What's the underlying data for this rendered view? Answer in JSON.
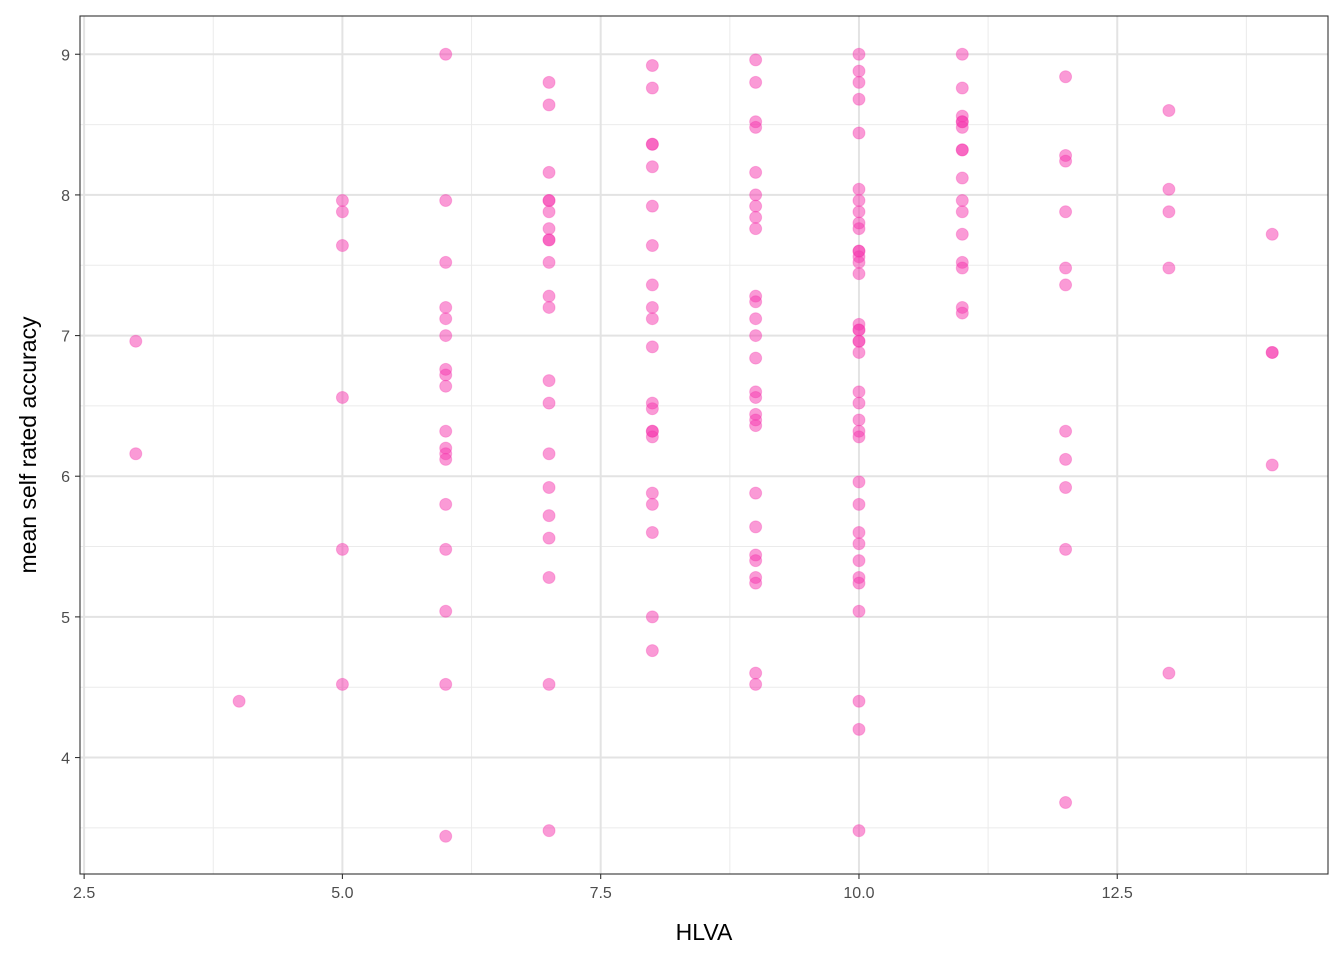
{
  "chart_data": {
    "type": "scatter",
    "title": "",
    "xlabel": "HLVA",
    "ylabel": "mean self rated accuracy",
    "xlim": [
      2.46,
      14.54
    ],
    "ylim": [
      3.172,
      9.272
    ],
    "x_major_ticks": [
      2.5,
      5.0,
      7.5,
      10.0,
      12.5
    ],
    "x_tick_labels": [
      "2.5",
      "5.0",
      "7.5",
      "10.0",
      "12.5"
    ],
    "x_minor_ticks": [
      3.75,
      6.25,
      8.75,
      11.25,
      13.75
    ],
    "y_major_ticks": [
      4,
      5,
      6,
      7,
      8,
      9
    ],
    "y_tick_labels": [
      "4",
      "5",
      "6",
      "7",
      "8",
      "9"
    ],
    "y_minor_ticks": [
      3.5,
      4.5,
      5.5,
      6.5,
      7.5,
      8.5
    ],
    "grid": true,
    "point_color": "#f536ad",
    "point_alpha": 0.5,
    "points": [
      {
        "x": 3,
        "y": 6.96
      },
      {
        "x": 3,
        "y": 6.16
      },
      {
        "x": 4,
        "y": 4.4
      },
      {
        "x": 5,
        "y": 7.96
      },
      {
        "x": 5,
        "y": 7.88
      },
      {
        "x": 5,
        "y": 7.64
      },
      {
        "x": 5,
        "y": 6.56
      },
      {
        "x": 5,
        "y": 5.48
      },
      {
        "x": 5,
        "y": 4.52
      },
      {
        "x": 6,
        "y": 9.0
      },
      {
        "x": 6,
        "y": 7.96
      },
      {
        "x": 6,
        "y": 7.52
      },
      {
        "x": 6,
        "y": 7.2
      },
      {
        "x": 6,
        "y": 7.12
      },
      {
        "x": 6,
        "y": 7.0
      },
      {
        "x": 6,
        "y": 6.76
      },
      {
        "x": 6,
        "y": 6.72
      },
      {
        "x": 6,
        "y": 6.64
      },
      {
        "x": 6,
        "y": 6.32
      },
      {
        "x": 6,
        "y": 6.2
      },
      {
        "x": 6,
        "y": 6.16
      },
      {
        "x": 6,
        "y": 6.12
      },
      {
        "x": 6,
        "y": 5.8
      },
      {
        "x": 6,
        "y": 5.48
      },
      {
        "x": 6,
        "y": 5.04
      },
      {
        "x": 6,
        "y": 4.52
      },
      {
        "x": 6,
        "y": 3.44
      },
      {
        "x": 7,
        "y": 8.8
      },
      {
        "x": 7,
        "y": 8.64
      },
      {
        "x": 7,
        "y": 8.16
      },
      {
        "x": 7,
        "y": 7.96
      },
      {
        "x": 7,
        "y": 7.96
      },
      {
        "x": 7,
        "y": 7.88
      },
      {
        "x": 7,
        "y": 7.76
      },
      {
        "x": 7,
        "y": 7.68
      },
      {
        "x": 7,
        "y": 7.68
      },
      {
        "x": 7,
        "y": 7.52
      },
      {
        "x": 7,
        "y": 7.28
      },
      {
        "x": 7,
        "y": 7.2
      },
      {
        "x": 7,
        "y": 6.68
      },
      {
        "x": 7,
        "y": 6.52
      },
      {
        "x": 7,
        "y": 6.16
      },
      {
        "x": 7,
        "y": 5.92
      },
      {
        "x": 7,
        "y": 5.72
      },
      {
        "x": 7,
        "y": 5.56
      },
      {
        "x": 7,
        "y": 5.28
      },
      {
        "x": 7,
        "y": 4.52
      },
      {
        "x": 7,
        "y": 3.48
      },
      {
        "x": 8,
        "y": 8.92
      },
      {
        "x": 8,
        "y": 8.76
      },
      {
        "x": 8,
        "y": 8.36
      },
      {
        "x": 8,
        "y": 8.36
      },
      {
        "x": 8,
        "y": 8.2
      },
      {
        "x": 8,
        "y": 7.92
      },
      {
        "x": 8,
        "y": 7.64
      },
      {
        "x": 8,
        "y": 7.36
      },
      {
        "x": 8,
        "y": 7.2
      },
      {
        "x": 8,
        "y": 7.12
      },
      {
        "x": 8,
        "y": 6.92
      },
      {
        "x": 8,
        "y": 6.52
      },
      {
        "x": 8,
        "y": 6.48
      },
      {
        "x": 8,
        "y": 6.32
      },
      {
        "x": 8,
        "y": 6.32
      },
      {
        "x": 8,
        "y": 6.28
      },
      {
        "x": 8,
        "y": 5.88
      },
      {
        "x": 8,
        "y": 5.8
      },
      {
        "x": 8,
        "y": 5.6
      },
      {
        "x": 8,
        "y": 5.0
      },
      {
        "x": 8,
        "y": 4.76
      },
      {
        "x": 9,
        "y": 8.96
      },
      {
        "x": 9,
        "y": 8.8
      },
      {
        "x": 9,
        "y": 8.52
      },
      {
        "x": 9,
        "y": 8.48
      },
      {
        "x": 9,
        "y": 8.16
      },
      {
        "x": 9,
        "y": 8.0
      },
      {
        "x": 9,
        "y": 7.92
      },
      {
        "x": 9,
        "y": 7.84
      },
      {
        "x": 9,
        "y": 7.76
      },
      {
        "x": 9,
        "y": 7.28
      },
      {
        "x": 9,
        "y": 7.24
      },
      {
        "x": 9,
        "y": 7.12
      },
      {
        "x": 9,
        "y": 7.0
      },
      {
        "x": 9,
        "y": 6.84
      },
      {
        "x": 9,
        "y": 6.6
      },
      {
        "x": 9,
        "y": 6.56
      },
      {
        "x": 9,
        "y": 6.44
      },
      {
        "x": 9,
        "y": 6.4
      },
      {
        "x": 9,
        "y": 6.36
      },
      {
        "x": 9,
        "y": 5.88
      },
      {
        "x": 9,
        "y": 5.64
      },
      {
        "x": 9,
        "y": 5.44
      },
      {
        "x": 9,
        "y": 5.4
      },
      {
        "x": 9,
        "y": 5.28
      },
      {
        "x": 9,
        "y": 5.24
      },
      {
        "x": 9,
        "y": 4.6
      },
      {
        "x": 9,
        "y": 4.52
      },
      {
        "x": 10,
        "y": 9.0
      },
      {
        "x": 10,
        "y": 8.88
      },
      {
        "x": 10,
        "y": 8.8
      },
      {
        "x": 10,
        "y": 8.68
      },
      {
        "x": 10,
        "y": 8.44
      },
      {
        "x": 10,
        "y": 8.04
      },
      {
        "x": 10,
        "y": 7.96
      },
      {
        "x": 10,
        "y": 7.88
      },
      {
        "x": 10,
        "y": 7.8
      },
      {
        "x": 10,
        "y": 7.76
      },
      {
        "x": 10,
        "y": 7.6
      },
      {
        "x": 10,
        "y": 7.6
      },
      {
        "x": 10,
        "y": 7.56
      },
      {
        "x": 10,
        "y": 7.52
      },
      {
        "x": 10,
        "y": 7.44
      },
      {
        "x": 10,
        "y": 7.08
      },
      {
        "x": 10,
        "y": 7.04
      },
      {
        "x": 10,
        "y": 7.04
      },
      {
        "x": 10,
        "y": 6.96
      },
      {
        "x": 10,
        "y": 6.96
      },
      {
        "x": 10,
        "y": 6.88
      },
      {
        "x": 10,
        "y": 6.6
      },
      {
        "x": 10,
        "y": 6.52
      },
      {
        "x": 10,
        "y": 6.4
      },
      {
        "x": 10,
        "y": 6.32
      },
      {
        "x": 10,
        "y": 6.28
      },
      {
        "x": 10,
        "y": 5.96
      },
      {
        "x": 10,
        "y": 5.8
      },
      {
        "x": 10,
        "y": 5.6
      },
      {
        "x": 10,
        "y": 5.52
      },
      {
        "x": 10,
        "y": 5.4
      },
      {
        "x": 10,
        "y": 5.28
      },
      {
        "x": 10,
        "y": 5.24
      },
      {
        "x": 10,
        "y": 5.04
      },
      {
        "x": 10,
        "y": 4.4
      },
      {
        "x": 10,
        "y": 4.2
      },
      {
        "x": 10,
        "y": 3.48
      },
      {
        "x": 11,
        "y": 9.0
      },
      {
        "x": 11,
        "y": 8.76
      },
      {
        "x": 11,
        "y": 8.56
      },
      {
        "x": 11,
        "y": 8.52
      },
      {
        "x": 11,
        "y": 8.52
      },
      {
        "x": 11,
        "y": 8.48
      },
      {
        "x": 11,
        "y": 8.32
      },
      {
        "x": 11,
        "y": 8.32
      },
      {
        "x": 11,
        "y": 8.12
      },
      {
        "x": 11,
        "y": 7.96
      },
      {
        "x": 11,
        "y": 7.88
      },
      {
        "x": 11,
        "y": 7.72
      },
      {
        "x": 11,
        "y": 7.52
      },
      {
        "x": 11,
        "y": 7.48
      },
      {
        "x": 11,
        "y": 7.2
      },
      {
        "x": 11,
        "y": 7.16
      },
      {
        "x": 12,
        "y": 8.84
      },
      {
        "x": 12,
        "y": 8.28
      },
      {
        "x": 12,
        "y": 8.24
      },
      {
        "x": 12,
        "y": 7.88
      },
      {
        "x": 12,
        "y": 7.48
      },
      {
        "x": 12,
        "y": 7.36
      },
      {
        "x": 12,
        "y": 6.32
      },
      {
        "x": 12,
        "y": 6.12
      },
      {
        "x": 12,
        "y": 5.92
      },
      {
        "x": 12,
        "y": 5.48
      },
      {
        "x": 12,
        "y": 3.68
      },
      {
        "x": 13,
        "y": 8.6
      },
      {
        "x": 13,
        "y": 8.04
      },
      {
        "x": 13,
        "y": 7.88
      },
      {
        "x": 13,
        "y": 7.48
      },
      {
        "x": 13,
        "y": 4.6
      },
      {
        "x": 14,
        "y": 7.72
      },
      {
        "x": 14,
        "y": 6.88
      },
      {
        "x": 14,
        "y": 6.88
      },
      {
        "x": 14,
        "y": 6.08
      }
    ]
  }
}
